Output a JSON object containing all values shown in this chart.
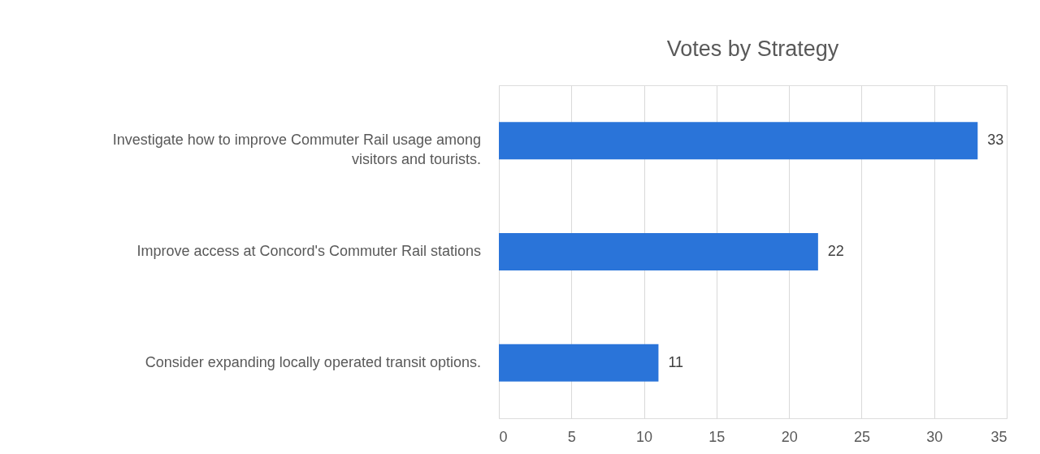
{
  "chart_data": {
    "type": "bar",
    "orientation": "horizontal",
    "title": "Votes by Strategy",
    "categories": [
      "Investigate how to improve Commuter Rail usage among visitors and tourists.",
      "Improve access at Concord's Commuter Rail stations",
      "Consider expanding locally operated transit options."
    ],
    "values": [
      33,
      22,
      11
    ],
    "color": "#2a74d9",
    "xlim": [
      0,
      35
    ],
    "xticks": [
      0,
      5,
      10,
      15,
      20,
      25,
      30,
      35
    ],
    "grid": "x",
    "data_labels": true
  }
}
